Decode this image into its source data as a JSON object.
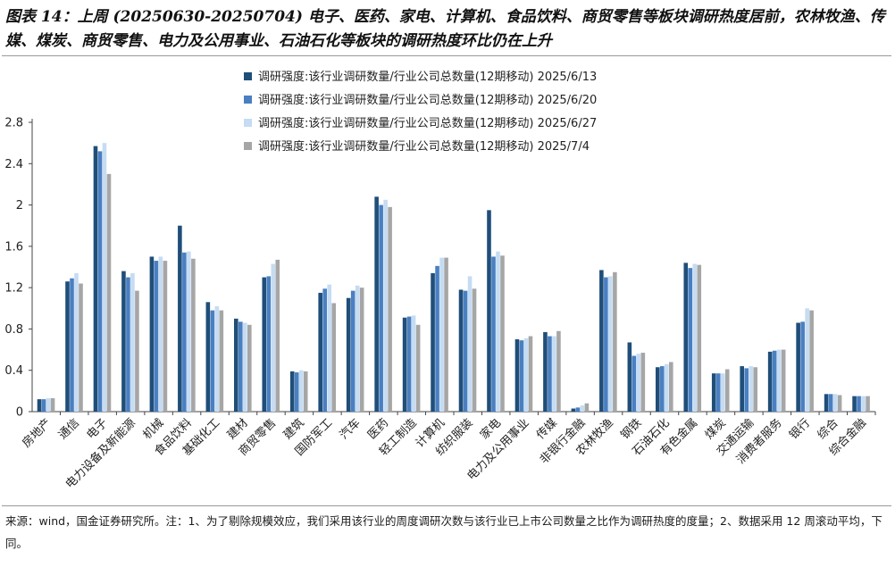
{
  "title": "图表 14：上周 (20250630-20250704) 电子、医药、家电、计算机、食品饮料、商贸零售等板块调研热度居前，农林牧渔、传媒、煤炭、商贸零售、电力及公用事业、石油石化等板块的调研热度环比仍在上升",
  "source": "来源：wind，国金证券研究所。注：1、为了剔除规模效应，我们采用该行业的周度调研次数与该行业已上市公司数量之比作为调研热度的度量；2、数据采用 12 周滚动平均，下同。",
  "chart_data": {
    "type": "bar",
    "ylim": [
      0,
      2.8
    ],
    "yticks": [
      "0",
      "0.4",
      "0.8",
      "1.2",
      "1.6",
      "2",
      "2.4",
      "2.8"
    ],
    "grid": false,
    "legend_position": "top-center",
    "categories": [
      "房地产",
      "通信",
      "电子",
      "电力设备及新能源",
      "机械",
      "食品饮料",
      "基础化工",
      "建材",
      "商贸零售",
      "建筑",
      "国防军工",
      "汽车",
      "医药",
      "轻工制造",
      "计算机",
      "纺织服装",
      "家电",
      "电力及公用事业",
      "传媒",
      "非银行金融",
      "农林牧渔",
      "钢铁",
      "石油石化",
      "有色金属",
      "煤炭",
      "交通运输",
      "消费者服务",
      "银行",
      "综合",
      "综合金融"
    ],
    "series": [
      {
        "name": "调研强度:该行业调研数量/行业公司总数量(12期移动) 2025/6/13",
        "color": "#1f4e79",
        "values": [
          0.12,
          1.26,
          2.57,
          1.36,
          1.5,
          1.8,
          1.06,
          0.9,
          1.3,
          0.39,
          1.15,
          1.1,
          2.08,
          0.91,
          1.34,
          1.18,
          1.95,
          0.7,
          0.77,
          0.03,
          1.37,
          0.67,
          0.43,
          1.44,
          0.37,
          0.44,
          0.58,
          0.86,
          0.17,
          0.15
        ]
      },
      {
        "name": "调研强度:该行业调研数量/行业公司总数量(12期移动) 2025/6/20",
        "color": "#4a7fc1",
        "values": [
          0.12,
          1.29,
          2.52,
          1.3,
          1.46,
          1.54,
          0.98,
          0.87,
          1.31,
          0.38,
          1.19,
          1.17,
          2.0,
          0.92,
          1.41,
          1.17,
          1.5,
          0.69,
          0.73,
          0.04,
          1.3,
          0.54,
          0.44,
          1.39,
          0.37,
          0.42,
          0.59,
          0.87,
          0.17,
          0.15
        ]
      },
      {
        "name": "调研强度:该行业调研数量/行业公司总数量(12期移动) 2025/6/27",
        "color": "#c5dcf2",
        "values": [
          0.13,
          1.34,
          2.6,
          1.34,
          1.5,
          1.55,
          1.02,
          0.86,
          1.43,
          0.4,
          1.23,
          1.22,
          2.05,
          0.93,
          1.49,
          1.31,
          1.55,
          0.71,
          0.73,
          0.06,
          1.31,
          0.56,
          0.46,
          1.43,
          0.37,
          0.44,
          0.6,
          1.0,
          0.17,
          0.15
        ]
      },
      {
        "name": "调研强度:该行业调研数量/行业公司总数量(12期移动) 2025/7/4",
        "color": "#a6a6a6",
        "values": [
          0.13,
          1.24,
          2.3,
          1.17,
          1.46,
          1.48,
          0.98,
          0.84,
          1.47,
          0.39,
          1.05,
          1.2,
          1.98,
          0.84,
          1.49,
          1.19,
          1.51,
          0.73,
          0.78,
          0.08,
          1.35,
          0.57,
          0.48,
          1.42,
          0.41,
          0.43,
          0.6,
          0.98,
          0.16,
          0.15
        ]
      }
    ]
  }
}
